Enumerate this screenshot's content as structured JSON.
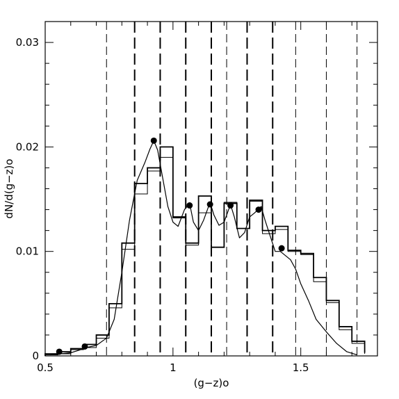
{
  "chart_data": {
    "type": "bar",
    "xlabel": "(g−z)o",
    "ylabel": "dN/d(g−z)o",
    "xlim": [
      0.5,
      1.8
    ],
    "ylim": [
      0,
      0.032
    ],
    "x_ticks": [
      {
        "value": 0.5,
        "label": "0.5"
      },
      {
        "value": 1.0,
        "label": "1"
      },
      {
        "value": 1.5,
        "label": "1.5"
      }
    ],
    "y_ticks": [
      {
        "value": 0,
        "label": "0"
      },
      {
        "value": 0.01,
        "label": "0.01"
      },
      {
        "value": 0.02,
        "label": "0.02"
      },
      {
        "value": 0.03,
        "label": "0.03"
      }
    ],
    "x_minor_step": 0.1,
    "y_minor_step": 0.002,
    "histogram": {
      "bin_edges": [
        0.5,
        0.55,
        0.6,
        0.65,
        0.7,
        0.75,
        0.8,
        0.85,
        0.9,
        0.95,
        1.0,
        1.05,
        1.1,
        1.15,
        1.2,
        1.25,
        1.3,
        1.35,
        1.4,
        1.45,
        1.5,
        1.55,
        1.6,
        1.65,
        1.7,
        1.75
      ],
      "values": [
        0.0001,
        0.0002,
        0.0006,
        0.0008,
        0.0017,
        0.0046,
        0.0102,
        0.0155,
        0.0177,
        0.019,
        0.0132,
        0.0106,
        0.0137,
        0.0104,
        0.0147,
        0.0122,
        0.0148,
        0.0117,
        0.0121,
        0.01,
        0.0097,
        0.0071,
        0.0051,
        0.0025,
        0.0012,
        0.0002
      ]
    },
    "histogram_2": {
      "bin_edges": [
        0.5,
        0.55,
        0.6,
        0.65,
        0.7,
        0.75,
        0.8,
        0.85,
        0.9,
        0.95,
        1.0,
        1.05,
        1.1,
        1.15,
        1.2,
        1.25,
        1.3,
        1.35,
        1.4,
        1.45,
        1.5,
        1.55,
        1.6,
        1.65,
        1.7,
        1.75
      ],
      "values": [
        0.0002,
        0.0004,
        0.0007,
        0.0011,
        0.002,
        0.005,
        0.0108,
        0.0165,
        0.018,
        0.02,
        0.0133,
        0.0108,
        0.0153,
        0.0104,
        0.0146,
        0.0122,
        0.0149,
        0.012,
        0.0124,
        0.0101,
        0.0098,
        0.0075,
        0.0053,
        0.0028,
        0.0014,
        0.0003
      ]
    },
    "curve": {
      "x": [
        0.52,
        0.56,
        0.6,
        0.64,
        0.66,
        0.7,
        0.74,
        0.77,
        0.8,
        0.83,
        0.86,
        0.89,
        0.91,
        0.925,
        0.94,
        0.96,
        0.98,
        1.0,
        1.02,
        1.045,
        1.065,
        1.08,
        1.1,
        1.12,
        1.145,
        1.16,
        1.18,
        1.2,
        1.225,
        1.24,
        1.26,
        1.28,
        1.3,
        1.32,
        1.345,
        1.36,
        1.38,
        1.4,
        1.42,
        1.44,
        1.46,
        1.48,
        1.5,
        1.53,
        1.56,
        1.6,
        1.64,
        1.68,
        1.72
      ],
      "y": [
        0.0001,
        0.0002,
        0.0003,
        0.0006,
        0.0008,
        0.001,
        0.0017,
        0.0035,
        0.008,
        0.013,
        0.0168,
        0.0185,
        0.0198,
        0.0206,
        0.0197,
        0.017,
        0.0143,
        0.0128,
        0.0124,
        0.014,
        0.0146,
        0.0128,
        0.012,
        0.013,
        0.0147,
        0.0135,
        0.0125,
        0.0128,
        0.0145,
        0.0133,
        0.0113,
        0.0118,
        0.0133,
        0.0137,
        0.0143,
        0.013,
        0.0115,
        0.01,
        0.01,
        0.0096,
        0.0092,
        0.0083,
        0.0069,
        0.0053,
        0.0035,
        0.0023,
        0.0012,
        0.0004,
        0.0001
      ]
    },
    "points": {
      "x": [
        0.555,
        0.655,
        0.925,
        1.065,
        1.145,
        1.225,
        1.335,
        1.425
      ],
      "y": [
        0.0004,
        0.0009,
        0.0206,
        0.0144,
        0.0145,
        0.0144,
        0.014,
        0.0103
      ]
    },
    "vlines_long_dash": [
      0.85,
      0.95,
      1.05,
      1.15,
      1.29,
      1.39
    ],
    "vlines_short_dash": [
      0.74,
      1.21,
      1.48,
      1.6,
      1.72
    ]
  }
}
